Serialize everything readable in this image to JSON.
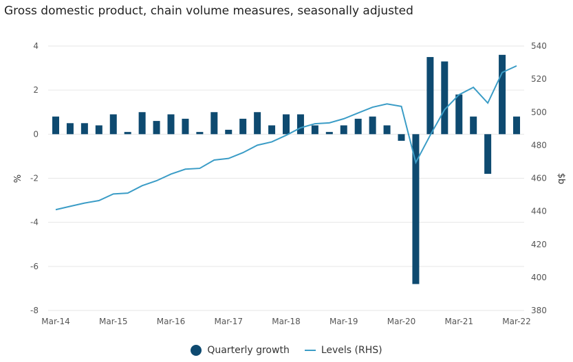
{
  "title": "Gross domestic product, chain volume measures, seasonally adjusted",
  "colors": {
    "bars": "#0e4a70",
    "line": "#3a9cc6",
    "grid": "#e6e6e6"
  },
  "chart_data": {
    "type": "bar+line",
    "title": "Gross domestic product, chain volume measures, seasonally adjusted",
    "ylabel": "%",
    "y2label": "$b",
    "ylim": [
      -8,
      4
    ],
    "y2lim": [
      380,
      540
    ],
    "yticks": [
      4,
      2,
      0,
      -2,
      -4,
      -6,
      -8
    ],
    "y2ticks": [
      540,
      520,
      500,
      480,
      460,
      440,
      420,
      400,
      380
    ],
    "xtick_labels": [
      "Mar-14",
      "Mar-15",
      "Mar-16",
      "Mar-17",
      "Mar-18",
      "Mar-19",
      "Mar-20",
      "Mar-21",
      "Mar-22"
    ],
    "grid": true,
    "legend_placement": "bottom",
    "series": [
      {
        "name": "Quarterly growth",
        "type": "bar",
        "axis": "left",
        "values": [
          0.8,
          0.5,
          0.5,
          0.4,
          0.9,
          0.1,
          1.0,
          0.6,
          0.9,
          0.7,
          0.1,
          1.0,
          0.2,
          0.7,
          1.0,
          0.4,
          0.9,
          0.9,
          0.4,
          0.1,
          0.4,
          0.7,
          0.8,
          0.4,
          -0.3,
          -6.8,
          3.5,
          3.3,
          1.8,
          0.8,
          -1.8,
          3.6,
          0.8
        ]
      },
      {
        "name": "Levels (RHS)",
        "type": "line",
        "axis": "right",
        "values": [
          441,
          443,
          445,
          446.5,
          450.5,
          451,
          455.5,
          458.5,
          462.5,
          465.5,
          466,
          471,
          472,
          475.5,
          480,
          482,
          486,
          490.5,
          493,
          493.5,
          496,
          499.5,
          503,
          505,
          503.5,
          469.5,
          486,
          501.5,
          510.5,
          515,
          505.5,
          524,
          528
        ]
      }
    ]
  }
}
